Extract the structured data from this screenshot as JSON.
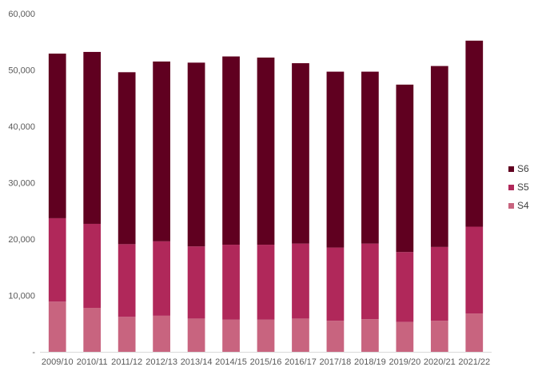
{
  "chart_data": {
    "type": "bar",
    "stacked": true,
    "categories": [
      "2009/10",
      "2010/11",
      "2011/12",
      "2012/13",
      "2013/14",
      "2014/15",
      "2015/16",
      "2016/17",
      "2017/18",
      "2018/19",
      "2019/20",
      "2020/21",
      "2021/22"
    ],
    "series": [
      {
        "name": "S4",
        "color": "#c8647f",
        "values": [
          8900,
          7800,
          6200,
          6400,
          5900,
          5700,
          5700,
          5900,
          5500,
          5800,
          5300,
          5500,
          6800
        ]
      },
      {
        "name": "S5",
        "color": "#b0285a",
        "values": [
          14800,
          14900,
          12900,
          13200,
          12800,
          13300,
          13300,
          13300,
          13000,
          13400,
          12400,
          13100,
          15400
        ]
      },
      {
        "name": "S6",
        "color": "#600020",
        "values": [
          29200,
          30500,
          30500,
          31900,
          32600,
          33400,
          33200,
          32000,
          31200,
          30500,
          29700,
          32100,
          33000
        ]
      }
    ],
    "ylim": [
      0,
      60000
    ],
    "yticks": [
      "-",
      "10,000",
      "20,000",
      "30,000",
      "40,000",
      "50,000",
      "60,000"
    ],
    "xlabel": "",
    "ylabel": "",
    "grid": false,
    "legend": {
      "position": "right",
      "order": [
        "S6",
        "S5",
        "S4"
      ]
    }
  }
}
